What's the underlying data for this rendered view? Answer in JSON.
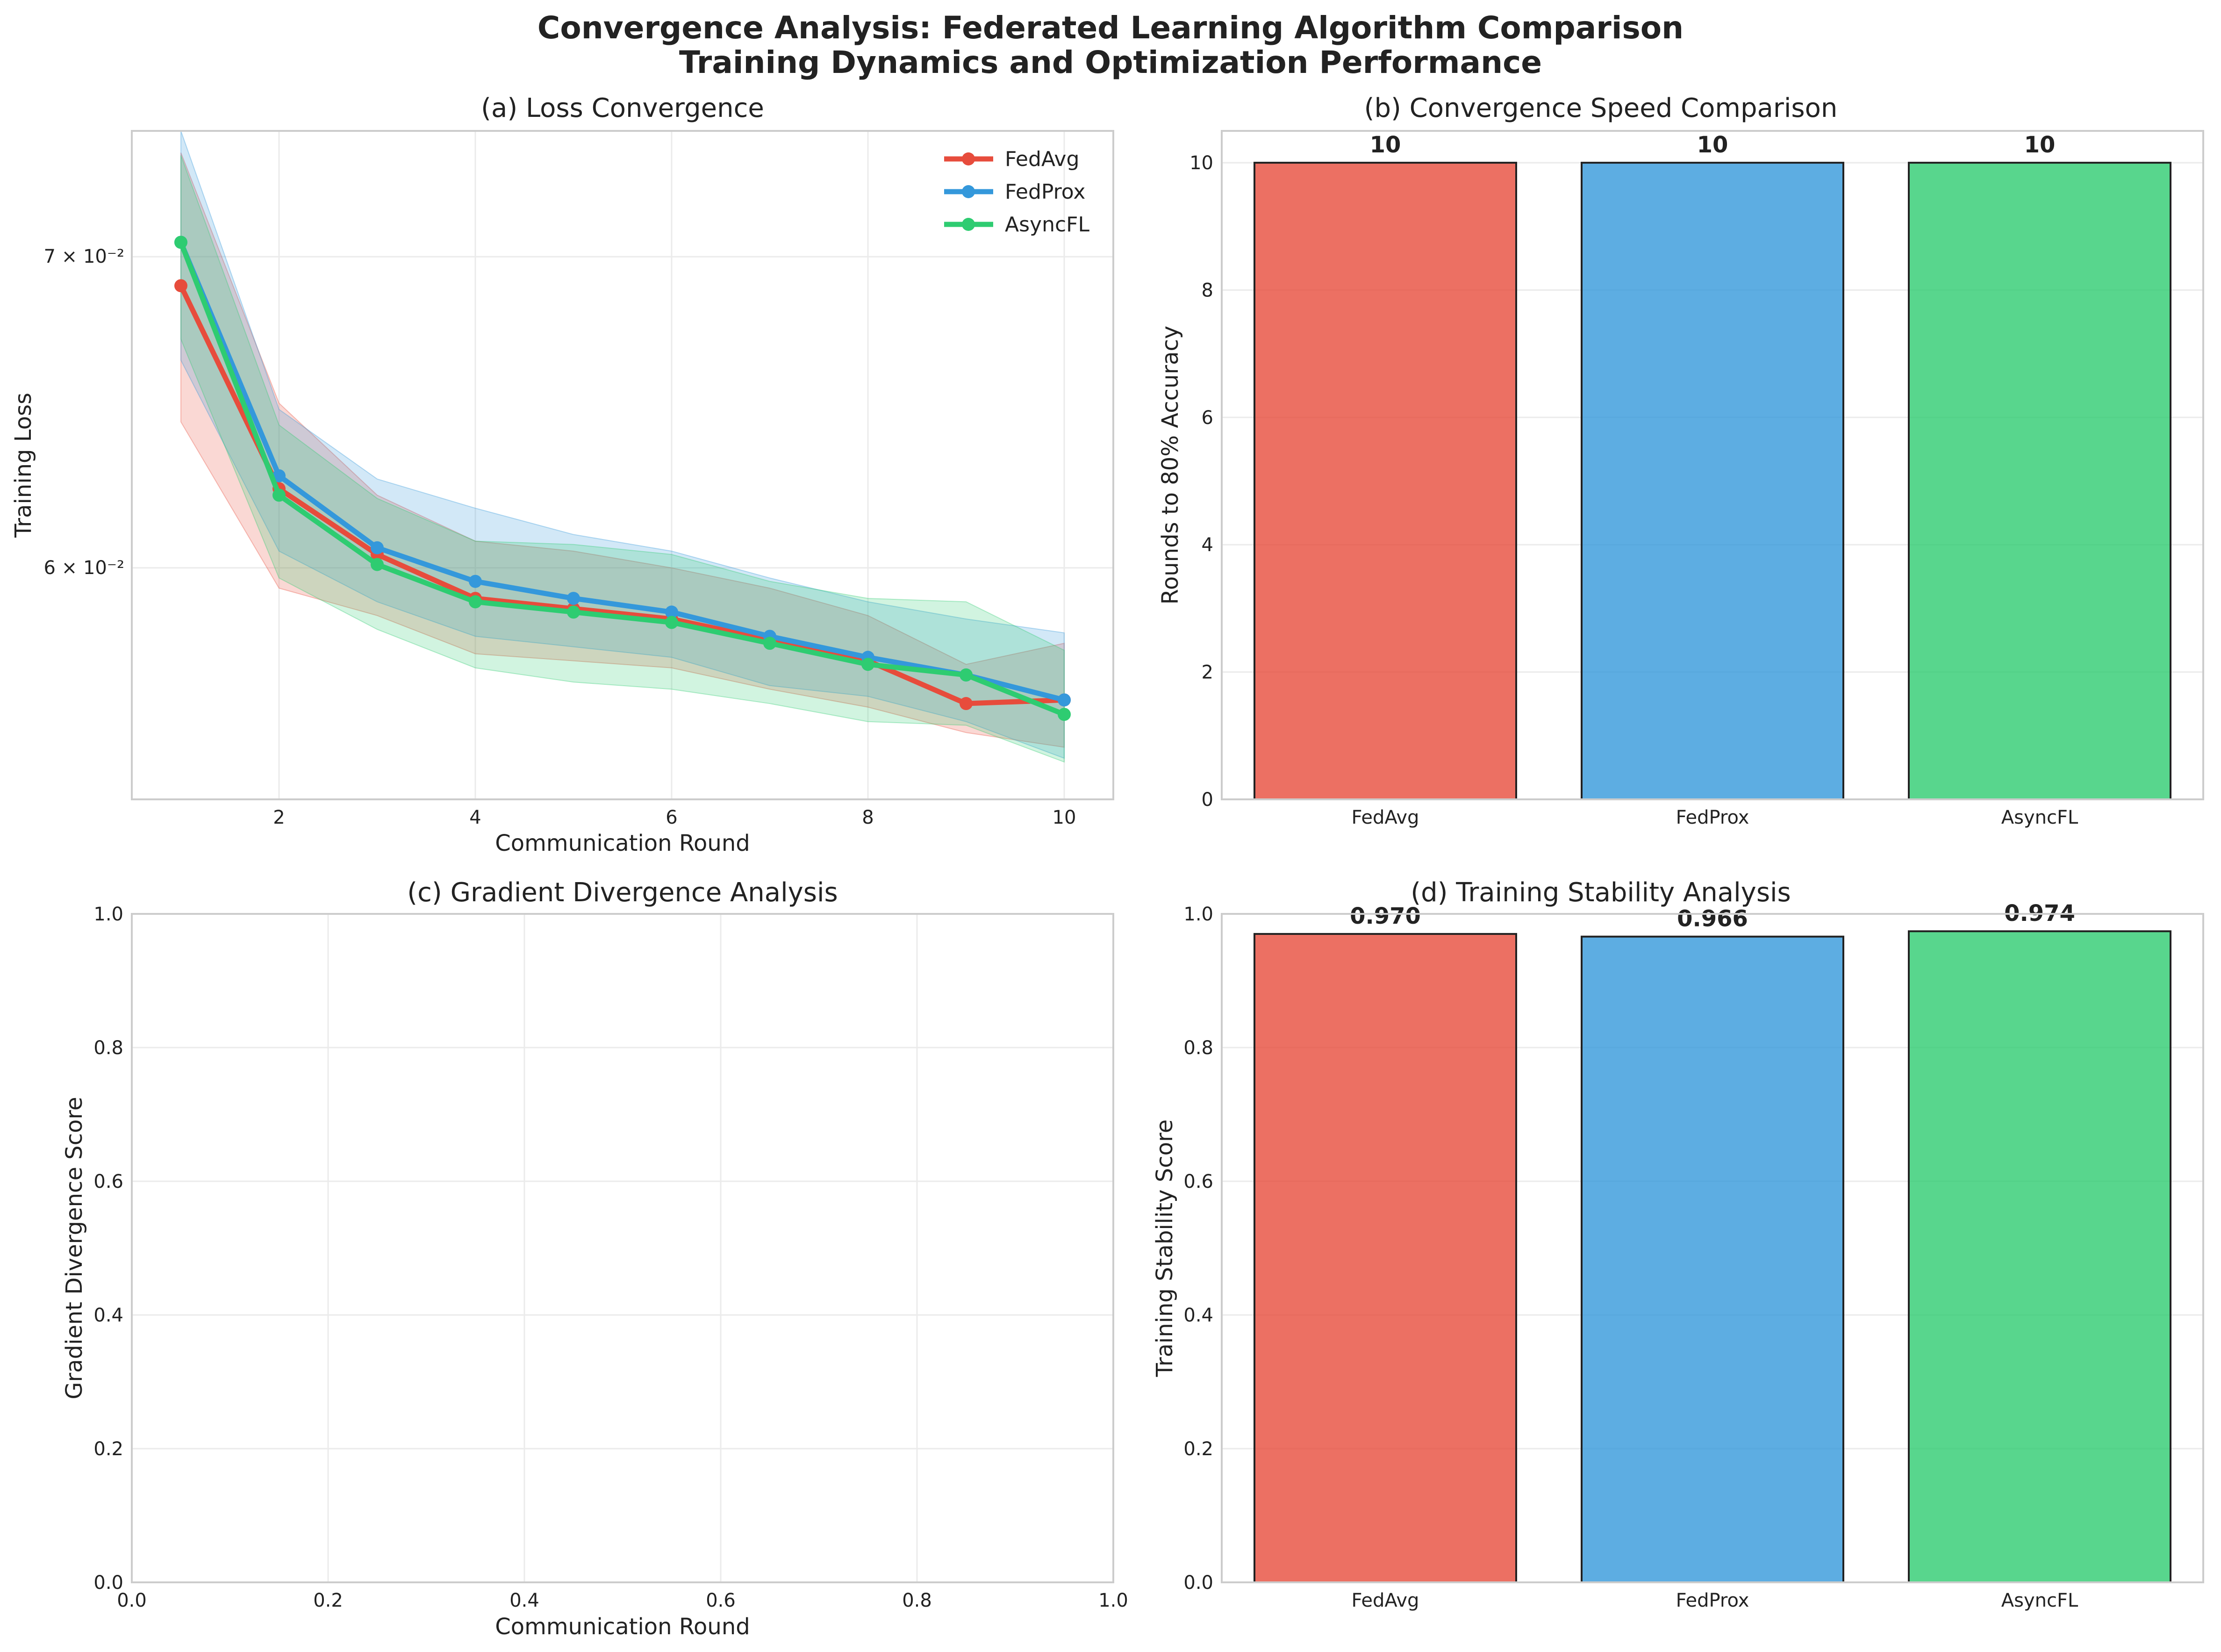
{
  "figure": {
    "title_line1": "Convergence Analysis: Federated Learning Algorithm Comparison",
    "title_line2": "Training Dynamics and Optimization Performance"
  },
  "chart_data": [
    {
      "id": "a",
      "type": "line",
      "title": "(a) Loss Convergence",
      "xlabel": "Communication Round",
      "ylabel": "Training Loss",
      "yscale": "log",
      "xlim": [
        0.5,
        10.5
      ],
      "ylim": [
        0.0535,
        0.0745
      ],
      "xticks": [
        2,
        4,
        6,
        8,
        10
      ],
      "yticks": [
        {
          "value": 0.06,
          "label": "6 × 10⁻²"
        },
        {
          "value": 0.07,
          "label": "7 × 10⁻²"
        }
      ],
      "legend": "top-right",
      "grid": true,
      "x": [
        1,
        2,
        3,
        4,
        5,
        6,
        7,
        8,
        9,
        10
      ],
      "series": [
        {
          "name": "FedAvg",
          "color": "#e74c3c",
          "values": [
            0.069,
            0.0624,
            0.0604,
            0.0591,
            0.0588,
            0.0585,
            0.0579,
            0.0573,
            0.0561,
            0.0562
          ],
          "lower": [
            0.0645,
            0.0594,
            0.0586,
            0.0575,
            0.0573,
            0.0571,
            0.0565,
            0.056,
            0.0553,
            0.0549
          ],
          "upper": [
            0.0737,
            0.0651,
            0.0622,
            0.0608,
            0.0605,
            0.06,
            0.0594,
            0.0586,
            0.0572,
            0.0578
          ]
        },
        {
          "name": "FedProx",
          "color": "#3498db",
          "values": [
            0.0705,
            0.0628,
            0.0606,
            0.0596,
            0.0591,
            0.0587,
            0.058,
            0.0574,
            0.0569,
            0.0562
          ],
          "lower": [
            0.0665,
            0.0605,
            0.059,
            0.058,
            0.0577,
            0.0574,
            0.0566,
            0.0563,
            0.0556,
            0.0546
          ],
          "upper": [
            0.0745,
            0.0649,
            0.0627,
            0.0618,
            0.061,
            0.0605,
            0.0597,
            0.059,
            0.0585,
            0.0581
          ]
        },
        {
          "name": "AsyncFL",
          "color": "#2ecc71",
          "values": [
            0.0705,
            0.0622,
            0.0601,
            0.059,
            0.0587,
            0.0584,
            0.0578,
            0.0572,
            0.0569,
            0.0558
          ],
          "lower": [
            0.0672,
            0.0597,
            0.0582,
            0.0571,
            0.0567,
            0.0565,
            0.0561,
            0.0556,
            0.0555,
            0.0545
          ],
          "upper": [
            0.0736,
            0.0644,
            0.0621,
            0.0608,
            0.0607,
            0.0604,
            0.0596,
            0.0591,
            0.059,
            0.0576
          ]
        }
      ]
    },
    {
      "id": "b",
      "type": "bar",
      "title": "(b) Convergence Speed Comparison",
      "xlabel": "",
      "ylabel": "Rounds to 80% Accuracy",
      "categories": [
        "FedAvg",
        "FedProx",
        "AsyncFL"
      ],
      "values": [
        10,
        10,
        10
      ],
      "value_labels": [
        "10",
        "10",
        "10"
      ],
      "colors": [
        "#e74c3c",
        "#3498db",
        "#2ecc71"
      ],
      "ylim": [
        0,
        10.5
      ],
      "yticks": [
        0,
        2,
        4,
        6,
        8,
        10
      ],
      "grid": true
    },
    {
      "id": "c",
      "type": "line",
      "title": "(c) Gradient Divergence Analysis",
      "xlabel": "Communication Round",
      "ylabel": "Gradient Divergence Score",
      "xlim": [
        0,
        1
      ],
      "ylim": [
        0,
        1
      ],
      "xticks": [
        0.0,
        0.2,
        0.4,
        0.6,
        0.8,
        1.0
      ],
      "yticks": [
        0.0,
        0.2,
        0.4,
        0.6,
        0.8,
        1.0
      ],
      "grid": true,
      "series": []
    },
    {
      "id": "d",
      "type": "bar",
      "title": "(d) Training Stability Analysis",
      "xlabel": "",
      "ylabel": "Training Stability Score",
      "categories": [
        "FedAvg",
        "FedProx",
        "AsyncFL"
      ],
      "values": [
        0.97,
        0.966,
        0.974
      ],
      "value_labels": [
        "0.970",
        "0.966",
        "0.974"
      ],
      "colors": [
        "#e74c3c",
        "#3498db",
        "#2ecc71"
      ],
      "ylim": [
        0,
        1.0
      ],
      "yticks": [
        0.0,
        0.2,
        0.4,
        0.6,
        0.8,
        1.0
      ],
      "grid": true
    }
  ]
}
